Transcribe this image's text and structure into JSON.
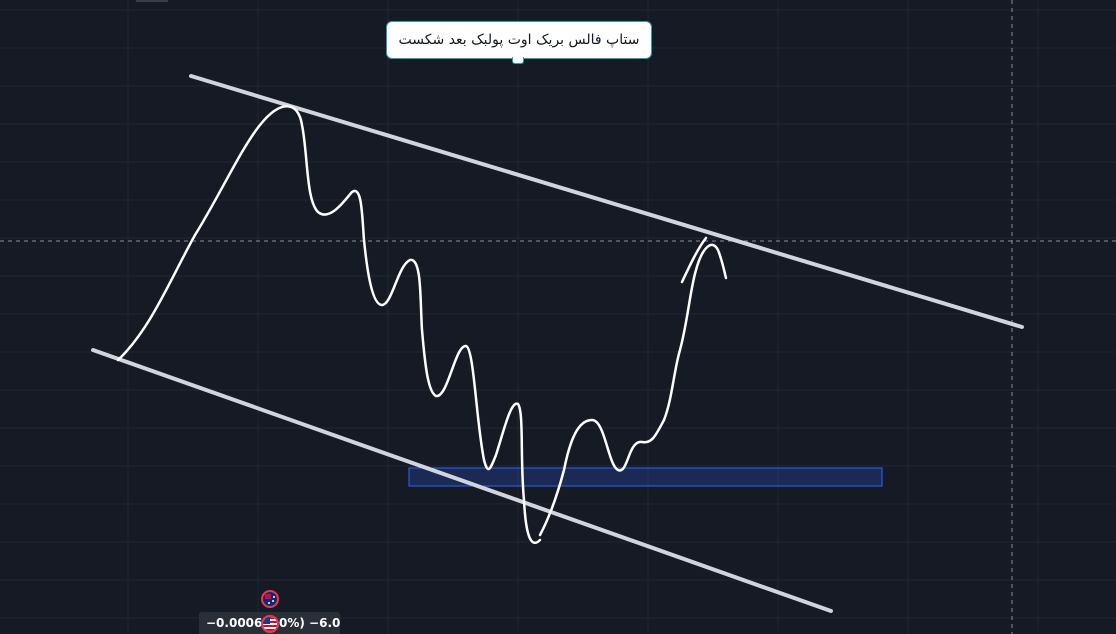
{
  "chart": {
    "background_color": "#161a25",
    "grid_color": "#222633",
    "crosshair_color": "#b2b5be",
    "drawing_color": "#ffffff",
    "trendline_color": "#d1d4dc",
    "zone_color": "#2962ff"
  },
  "annotation": {
    "text": "ستاپ فالس بریک اوت پولبک بعد شکست",
    "border_color": "#29a3a3"
  },
  "events": {
    "flag_top_icon": "australia-flag-icon",
    "flag_bottom_icon": "us-flag-icon",
    "flag_border_color": "#f23645"
  },
  "bottom_tag": {
    "left_text": "−0.00060",
    "right_text": "0%) −6.0"
  }
}
